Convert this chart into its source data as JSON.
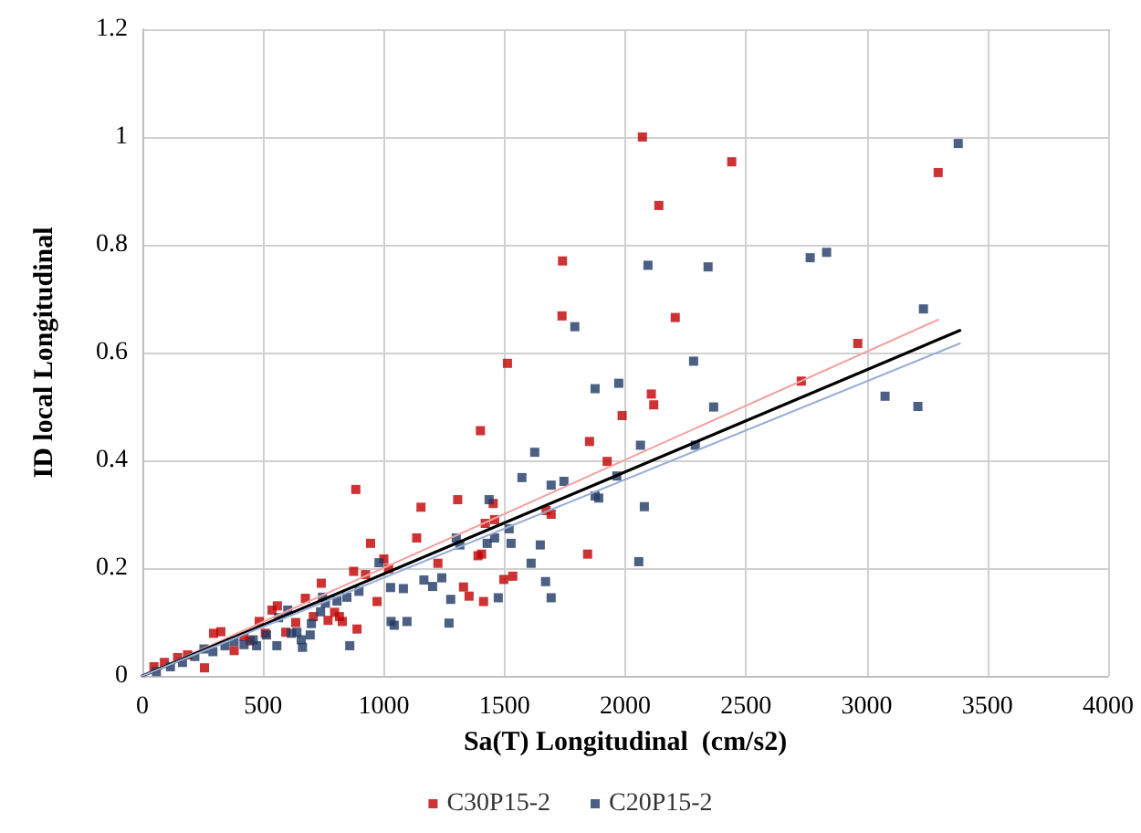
{
  "chart_data": {
    "type": "scatter",
    "xlabel": "Sa(T) Longitudinal  (cm/s2)",
    "ylabel": "ID local Longitudinal",
    "xlim": [
      0,
      4000
    ],
    "xticks": [
      0,
      500,
      1000,
      1500,
      2000,
      2500,
      3000,
      3500,
      4000
    ],
    "ylim": [
      0,
      1.2
    ],
    "yticks": [
      0,
      0.2,
      0.4,
      0.6,
      0.8,
      1,
      1.2
    ],
    "grid": true,
    "legend": "bottom",
    "marker": "square",
    "series": [
      {
        "name": "C30P15-2",
        "color": "#c00000",
        "x": [
          2071,
          2139,
          2441,
          3296,
          1740,
          1738,
          2207,
          1512,
          2108,
          2118,
          1987,
          1400,
          1852,
          1925,
          2729,
          2963,
          1306,
          1453,
          1420,
          1459,
          1672,
          1693,
          1390,
          1405,
          1844,
          1497,
          1534,
          1330,
          1353,
          1413,
          1224,
          884,
          1154,
          945,
          924,
          1000,
          1020,
          875,
          741,
          675,
          559,
          537,
          484,
          635,
          708,
          796,
          816,
          769,
          828,
          889,
          972,
          295,
          325,
          421,
          257,
          187,
          91,
          48,
          146,
          380,
          446,
          509,
          594,
          1136
        ],
        "values": [
          1.0,
          0.873,
          0.954,
          0.934,
          0.77,
          0.668,
          0.665,
          0.58,
          0.523,
          0.503,
          0.483,
          0.455,
          0.435,
          0.398,
          0.547,
          0.617,
          0.327,
          0.32,
          0.283,
          0.29,
          0.307,
          0.3,
          0.223,
          0.226,
          0.226,
          0.179,
          0.185,
          0.165,
          0.148,
          0.138,
          0.209,
          0.346,
          0.313,
          0.246,
          0.188,
          0.217,
          0.199,
          0.194,
          0.172,
          0.144,
          0.13,
          0.122,
          0.101,
          0.099,
          0.11,
          0.118,
          0.11,
          0.103,
          0.101,
          0.087,
          0.138,
          0.079,
          0.082,
          0.073,
          0.015,
          0.039,
          0.025,
          0.017,
          0.034,
          0.047,
          0.065,
          0.079,
          0.081,
          0.256
        ]
      },
      {
        "name": "C20P15-2",
        "color": "#1f3864",
        "x": [
          3379,
          2766,
          2834,
          3235,
          3076,
          3212,
          2094,
          2343,
          1791,
          2283,
          1875,
          1973,
          2366,
          2063,
          2290,
          1625,
          1572,
          1693,
          1746,
          1965,
          1875,
          1890,
          2079,
          1436,
          1300,
          1315,
          1428,
          1459,
          1519,
          1527,
          1648,
          1610,
          2056,
          1670,
          1693,
          1474,
          1277,
          1240,
          1270,
          980,
          1028,
          1081,
          1030,
          1043,
          1096,
          1166,
          1202,
          806,
          758,
          738,
          700,
          663,
          640,
          617,
          564,
          514,
          459,
          421,
          380,
          292,
          255,
          217,
          166,
          116,
          58,
          342,
          847,
          897,
          658,
          859,
          473,
          557,
          695,
          746,
          602
        ],
        "values": [
          0.988,
          0.776,
          0.786,
          0.681,
          0.519,
          0.5,
          0.762,
          0.759,
          0.648,
          0.584,
          0.533,
          0.543,
          0.499,
          0.428,
          0.428,
          0.415,
          0.368,
          0.354,
          0.361,
          0.371,
          0.334,
          0.33,
          0.314,
          0.327,
          0.256,
          0.243,
          0.246,
          0.256,
          0.273,
          0.246,
          0.243,
          0.209,
          0.212,
          0.175,
          0.145,
          0.145,
          0.142,
          0.182,
          0.098,
          0.21,
          0.164,
          0.162,
          0.101,
          0.094,
          0.101,
          0.178,
          0.166,
          0.139,
          0.135,
          0.119,
          0.097,
          0.053,
          0.081,
          0.079,
          0.108,
          0.076,
          0.067,
          0.058,
          0.064,
          0.045,
          0.05,
          0.036,
          0.025,
          0.017,
          0.008,
          0.056,
          0.146,
          0.157,
          0.067,
          0.056,
          0.056,
          0.056,
          0.076,
          0.146,
          0.122
        ]
      },
      {
        "type": "line",
        "color": "#f4a0a0",
        "marker": "none",
        "x": [
          0,
          3296
        ],
        "values": [
          0,
          0.661
        ]
      },
      {
        "type": "line",
        "color": "#000000",
        "marker": "none",
        "x": [
          0,
          3386
        ],
        "values": [
          0,
          0.641
        ]
      },
      {
        "type": "line",
        "color": "#97aed6",
        "marker": "none",
        "x": [
          0,
          3386
        ],
        "values": [
          0,
          0.617
        ]
      }
    ]
  }
}
